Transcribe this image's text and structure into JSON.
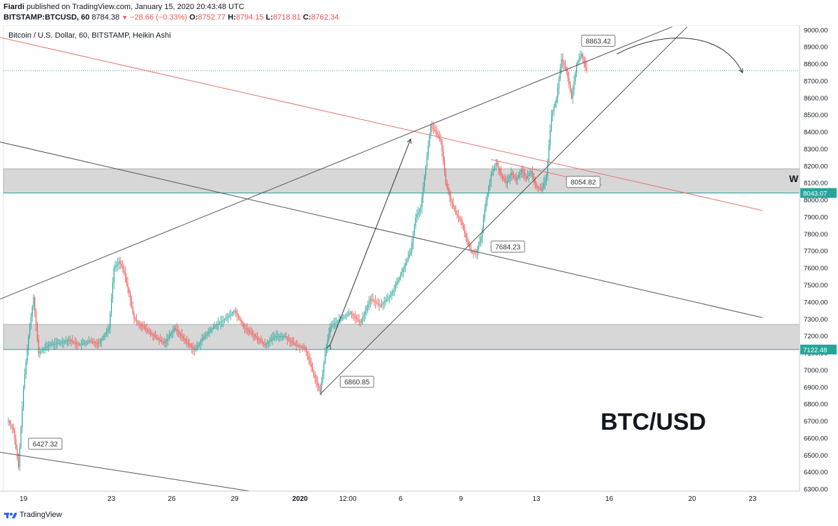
{
  "header": {
    "author": "Fiardi",
    "published": "published on TradingView.com, January 15, 2020 20:43:48 UTC",
    "symbol": "BITSTAMP:BTCUSD, 60",
    "last": "8784.38",
    "change": "−28.66 (−0.33%)",
    "o_label": "O:",
    "o_value": "8752.77",
    "h_label": "H:",
    "h_value": "8794.15",
    "l_label": "L:",
    "l_value": "8718.81",
    "c_label": "C:",
    "c_value": "8762.34"
  },
  "footer": {
    "brand": "TradingView"
  },
  "colors": {
    "up": "#26a69a",
    "down": "#ef5350",
    "trend": "#555555",
    "redline": "#e57373",
    "zone": "#d3d3d3",
    "accent": "#26a69a"
  },
  "chart_data": {
    "type": "candlestick",
    "title": "Bitcoin / U.S. Dollar, 60, BITSTAMP, Heikin Ashi",
    "watermark": "BTC/USD",
    "ylim": [
      6290,
      9030
    ],
    "y_ticks": [
      "9000.00",
      "8900.00",
      "8800.00",
      "8700.00",
      "8600.00",
      "8500.00",
      "8400.00",
      "8300.00",
      "8200.00",
      "8100.00",
      "8000.00",
      "7900.00",
      "7800.00",
      "7700.00",
      "7600.00",
      "7500.00",
      "7400.00",
      "7300.00",
      "7200.00",
      "7100.00",
      "7000.00",
      "6900.00",
      "6800.00",
      "6700.00",
      "6600.00",
      "6500.00",
      "6400.00",
      "6300.00"
    ],
    "x_ticks": [
      "19",
      "23",
      "26",
      "29",
      "2020",
      "12:00",
      "6",
      "9",
      "13",
      "16",
      "20",
      "23"
    ],
    "price_markers": [
      {
        "label": "8043.07",
        "value": 8043.07
      },
      {
        "label": "7122.48",
        "value": 7122.48
      }
    ],
    "current_price": 8762.34,
    "callouts": [
      {
        "label": "8863.42",
        "value": 8863.42
      },
      {
        "label": "8054.82",
        "value": 8054.82
      },
      {
        "label": "7684.23",
        "value": 7684.23
      },
      {
        "label": "6860.85",
        "value": 6860.85
      },
      {
        "label": "6427.32",
        "value": 6427.32
      }
    ],
    "zones": [
      {
        "name": "upper-zone",
        "from": 8043.07,
        "to": 8185
      },
      {
        "name": "lower-zone",
        "from": 7122.48,
        "to": 7270
      }
    ],
    "price_path": [
      [
        0,
        6700
      ],
      [
        1,
        6650
      ],
      [
        2,
        6430
      ],
      [
        3,
        6900
      ],
      [
        4,
        7200
      ],
      [
        5,
        7430
      ],
      [
        6,
        7100
      ],
      [
        8,
        7150
      ],
      [
        10,
        7160
      ],
      [
        12,
        7180
      ],
      [
        14,
        7150
      ],
      [
        16,
        7170
      ],
      [
        18,
        7160
      ],
      [
        20,
        7250
      ],
      [
        21,
        7600
      ],
      [
        22,
        7640
      ],
      [
        23,
        7580
      ],
      [
        24,
        7450
      ],
      [
        25,
        7300
      ],
      [
        27,
        7250
      ],
      [
        29,
        7200
      ],
      [
        31,
        7160
      ],
      [
        33,
        7250
      ],
      [
        35,
        7180
      ],
      [
        37,
        7120
      ],
      [
        39,
        7200
      ],
      [
        41,
        7260
      ],
      [
        43,
        7300
      ],
      [
        45,
        7350
      ],
      [
        47,
        7250
      ],
      [
        49,
        7200
      ],
      [
        51,
        7150
      ],
      [
        53,
        7200
      ],
      [
        55,
        7200
      ],
      [
        57,
        7150
      ],
      [
        59,
        7130
      ],
      [
        61,
        6950
      ],
      [
        62,
        6870
      ],
      [
        63,
        7100
      ],
      [
        64,
        7260
      ],
      [
        66,
        7300
      ],
      [
        68,
        7340
      ],
      [
        70,
        7280
      ],
      [
        72,
        7420
      ],
      [
        74,
        7380
      ],
      [
        76,
        7440
      ],
      [
        78,
        7560
      ],
      [
        80,
        7700
      ],
      [
        81,
        7900
      ],
      [
        82,
        7960
      ],
      [
        83,
        8200
      ],
      [
        84,
        8440
      ],
      [
        85,
        8400
      ],
      [
        86,
        8350
      ],
      [
        87,
        8100
      ],
      [
        88,
        8000
      ],
      [
        89,
        7920
      ],
      [
        90,
        7880
      ],
      [
        91,
        7780
      ],
      [
        92,
        7700
      ],
      [
        93,
        7690
      ],
      [
        94,
        7780
      ],
      [
        95,
        8000
      ],
      [
        96,
        8150
      ],
      [
        97,
        8220
      ],
      [
        98,
        8150
      ],
      [
        99,
        8100
      ],
      [
        100,
        8160
      ],
      [
        101,
        8120
      ],
      [
        102,
        8180
      ],
      [
        103,
        8130
      ],
      [
        104,
        8170
      ],
      [
        105,
        8080
      ],
      [
        106,
        8060
      ],
      [
        107,
        8140
      ],
      [
        108,
        8500
      ],
      [
        109,
        8600
      ],
      [
        110,
        8830
      ],
      [
        111,
        8760
      ],
      [
        112,
        8600
      ],
      [
        113,
        8800
      ],
      [
        114,
        8860
      ],
      [
        115,
        8760
      ]
    ],
    "trendlines": [
      {
        "name": "red-downtrend",
        "color": "#e57373",
        "p1": [
          -2,
          8960
        ],
        "p2": [
          150,
          7940
        ]
      },
      {
        "name": "upper-channel",
        "color": "#555555",
        "p1": [
          -2,
          7415
        ],
        "p2": [
          132,
          9020
        ]
      },
      {
        "name": "lower-channel",
        "color": "#555555",
        "p1": [
          62,
          6860
        ],
        "p2": [
          135,
          9020
        ]
      },
      {
        "name": "long-downtrend",
        "color": "#555555",
        "p1": [
          -2,
          8345
        ],
        "p2": [
          150,
          7310
        ]
      },
      {
        "name": "bottom-trend",
        "color": "#555555",
        "p1": [
          -2,
          6520
        ],
        "p2": [
          48,
          6290
        ]
      },
      {
        "name": "red-short",
        "color": "#e57373",
        "p1": [
          96,
          8240
        ],
        "p2": [
          118,
          8090
        ]
      }
    ]
  }
}
